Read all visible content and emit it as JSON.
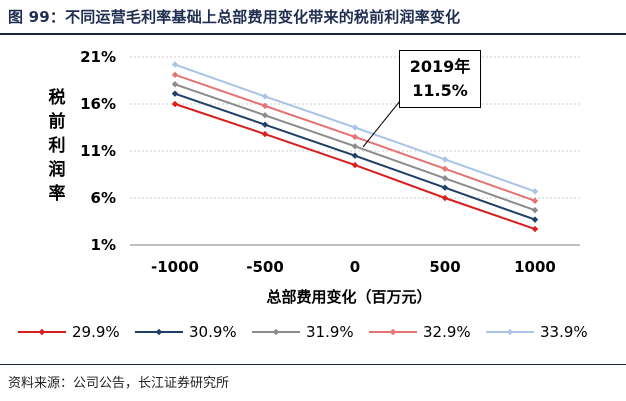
{
  "title": "图 99：不同运营毛利率基础上总部费用变化带来的税前利润率变化",
  "source": "资料来源：公司公告，长江证券研究所",
  "chart_data": {
    "type": "line",
    "title": "图 99：不同运营毛利率基础上总部费用变化带来的税前利润率变化",
    "xlabel": "总部费用变化（百万元）",
    "ylabel": "税前利润率",
    "categories": [
      "-1000",
      "-500",
      "0",
      "500",
      "1000"
    ],
    "yticks": [
      "1%",
      "6%",
      "11%",
      "16%",
      "21%"
    ],
    "ylim": [
      1,
      21
    ],
    "annotation": {
      "line1": "2019年",
      "line2": "11.5%"
    },
    "series": [
      {
        "name": "29.9%",
        "color": "#d81e1e",
        "values": [
          16.0,
          12.8,
          9.5,
          6.0,
          2.7
        ]
      },
      {
        "name": "30.9%",
        "color": "#1f3f66",
        "values": [
          17.1,
          13.8,
          10.5,
          7.1,
          3.7
        ]
      },
      {
        "name": "31.9%",
        "color": "#8c8c8c",
        "values": [
          18.1,
          14.8,
          11.5,
          8.1,
          4.7
        ]
      },
      {
        "name": "32.9%",
        "color": "#e57373",
        "values": [
          19.1,
          15.8,
          12.5,
          9.1,
          5.7
        ]
      },
      {
        "name": "33.9%",
        "color": "#a9c4e6",
        "values": [
          20.2,
          16.8,
          13.5,
          10.1,
          6.7
        ]
      }
    ]
  }
}
